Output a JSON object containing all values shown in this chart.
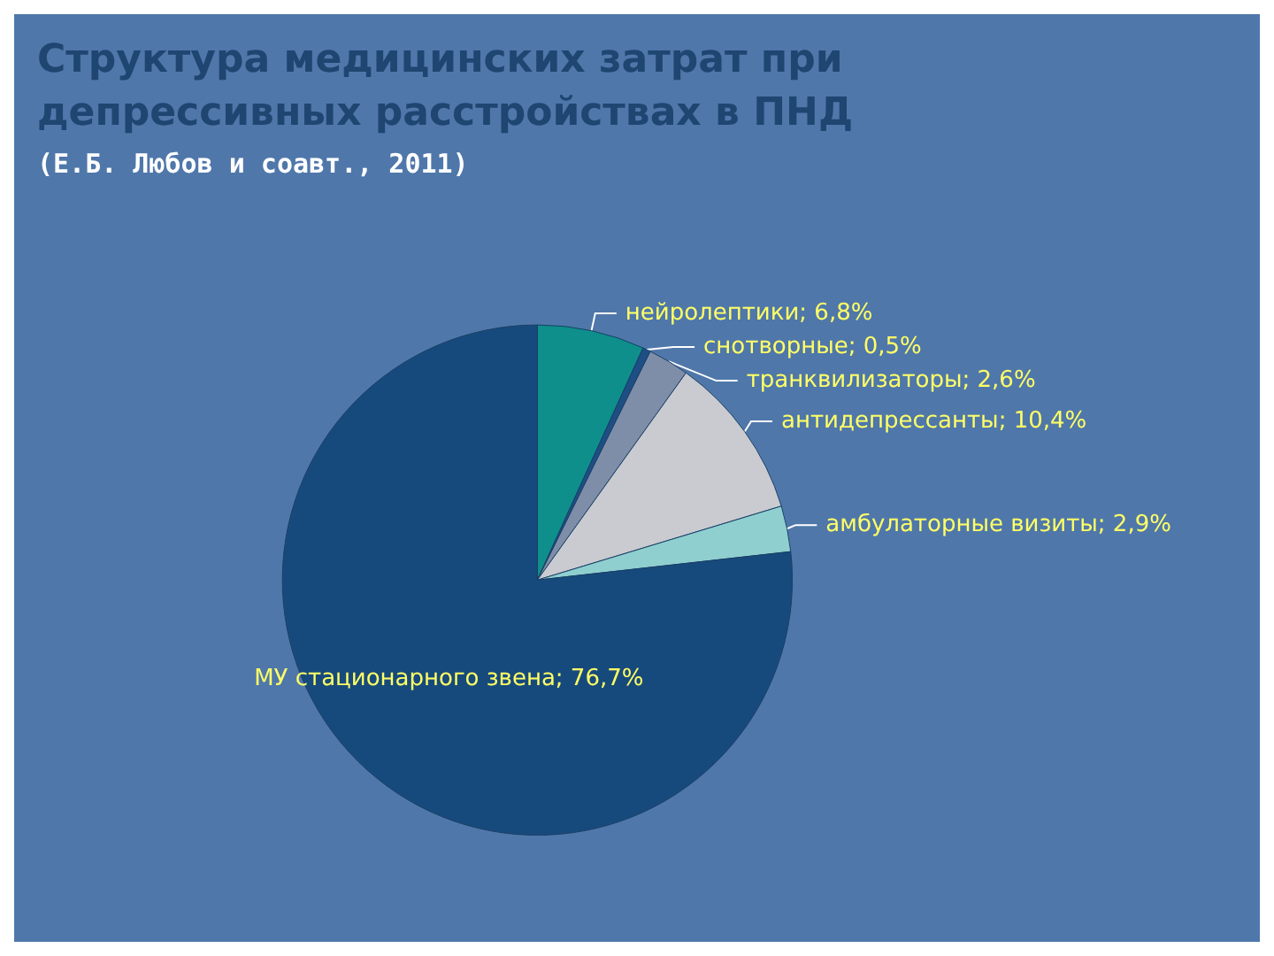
{
  "chart_data": {
    "type": "pie",
    "title": "Структура медицинских затрат при депрессивных расстройствах в ПНД",
    "subtitle": "(Е.Б. Любов и соавт., 2011)",
    "categories": [
      "нейролептики",
      "снотворные",
      "транквилизаторы",
      "антидепрессанты",
      "амбулаторные визиты",
      "МУ стационарного звена"
    ],
    "values": [
      6.8,
      0.5,
      2.6,
      10.4,
      2.9,
      76.7
    ],
    "value_labels": [
      "6,8%",
      "0,5%",
      "2,6%",
      "10,4%",
      "2,9%",
      "76,7%"
    ],
    "colors": [
      "#0e8f8c",
      "#1d4f85",
      "#7f8ea8",
      "#c9cbd0",
      "#8fcfcf",
      "#174a7c"
    ],
    "legend": false
  }
}
